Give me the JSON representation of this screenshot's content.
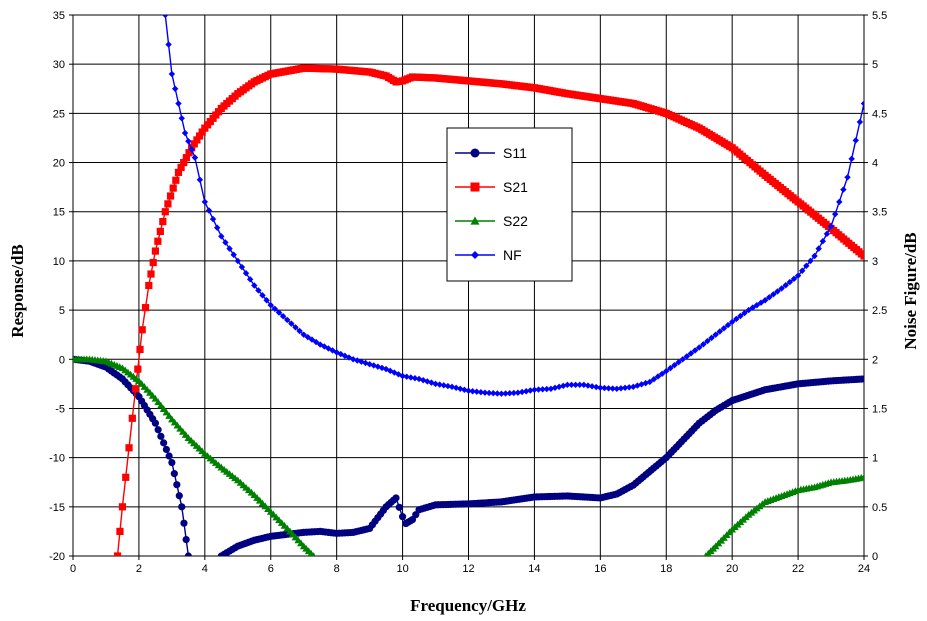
{
  "chart_data": {
    "type": "line",
    "xlabel": "Frequency/GHz",
    "ylabel": "Response/dB",
    "y2label": "Noise Figure/dB",
    "xlim": [
      0,
      24
    ],
    "ylim": [
      -20,
      35
    ],
    "y2lim": [
      0,
      5.5
    ],
    "xticks": [
      0,
      2,
      4,
      6,
      8,
      10,
      12,
      14,
      16,
      18,
      20,
      22,
      24
    ],
    "yticks": [
      -20,
      -15,
      -10,
      -5,
      0,
      5,
      10,
      15,
      20,
      25,
      30,
      35
    ],
    "y2ticks": [
      "0",
      "0.5",
      "1",
      "1.5",
      "2",
      "2.5",
      "3",
      "3.5",
      "4",
      "4.5",
      "5",
      "5.5"
    ],
    "grid": true,
    "legend_position": "center",
    "series": [
      {
        "name": "S11",
        "color": "#000080",
        "marker": "circle",
        "axis": "left",
        "segments": [
          [
            [
              0,
              0
            ],
            [
              0.5,
              -0.2
            ],
            [
              1,
              -0.8
            ],
            [
              1.5,
              -2
            ],
            [
              2,
              -3.8
            ],
            [
              2.5,
              -6.5
            ],
            [
              3,
              -10.5
            ],
            [
              3.3,
              -15
            ],
            [
              3.5,
              -20
            ]
          ],
          [
            [
              4.5,
              -20
            ],
            [
              5,
              -19
            ],
            [
              5.5,
              -18.4
            ],
            [
              6,
              -18
            ],
            [
              7,
              -17.6
            ],
            [
              7.5,
              -17.5
            ],
            [
              8,
              -17.7
            ],
            [
              8.5,
              -17.6
            ],
            [
              9,
              -17.2
            ],
            [
              9.5,
              -15
            ],
            [
              9.8,
              -14.1
            ],
            [
              10,
              -16
            ],
            [
              10.1,
              -16.7
            ],
            [
              10.3,
              -16.3
            ],
            [
              10.5,
              -15.3
            ],
            [
              11,
              -14.8
            ],
            [
              12,
              -14.7
            ],
            [
              13,
              -14.5
            ],
            [
              14,
              -14
            ],
            [
              15,
              -13.9
            ],
            [
              16,
              -14.1
            ],
            [
              16.5,
              -13.7
            ],
            [
              17,
              -12.8
            ],
            [
              18,
              -10
            ],
            [
              19,
              -6.5
            ],
            [
              19.5,
              -5.2
            ],
            [
              20,
              -4.2
            ],
            [
              21,
              -3.1
            ],
            [
              22,
              -2.5
            ],
            [
              23,
              -2.2
            ],
            [
              24,
              -2
            ]
          ]
        ]
      },
      {
        "name": "S21",
        "color": "#ff0000",
        "marker": "square",
        "axis": "left",
        "segments": [
          [
            [
              1.35,
              -20
            ],
            [
              1.5,
              -15
            ],
            [
              1.7,
              -9
            ],
            [
              1.9,
              -3
            ],
            [
              2.1,
              3
            ],
            [
              2.3,
              7.5
            ],
            [
              2.5,
              11
            ],
            [
              2.8,
              15
            ],
            [
              3.2,
              19
            ],
            [
              3.6,
              21.5
            ],
            [
              4,
              23.5
            ],
            [
              4.5,
              25.5
            ],
            [
              5,
              27
            ],
            [
              5.5,
              28.2
            ],
            [
              6,
              29
            ],
            [
              7,
              29.6
            ],
            [
              8,
              29.5
            ],
            [
              9,
              29.2
            ],
            [
              9.5,
              28.8
            ],
            [
              9.8,
              28.2
            ],
            [
              10,
              28.3
            ],
            [
              10.3,
              28.7
            ],
            [
              11,
              28.6
            ],
            [
              12,
              28.3
            ],
            [
              13,
              28
            ],
            [
              14,
              27.6
            ],
            [
              15,
              27
            ],
            [
              16,
              26.5
            ],
            [
              17,
              26
            ],
            [
              18,
              25
            ],
            [
              19,
              23.5
            ],
            [
              20,
              21.5
            ],
            [
              21,
              18.7
            ],
            [
              22,
              16
            ],
            [
              23,
              13.3
            ],
            [
              24,
              10.5
            ]
          ]
        ]
      },
      {
        "name": "S22",
        "color": "#008000",
        "marker": "triangle",
        "axis": "left",
        "segments": [
          [
            [
              0,
              0
            ],
            [
              0.5,
              0
            ],
            [
              1,
              -0.2
            ],
            [
              1.5,
              -0.9
            ],
            [
              2,
              -2.2
            ],
            [
              2.5,
              -4
            ],
            [
              3,
              -6.1
            ],
            [
              3.5,
              -8
            ],
            [
              4,
              -9.6
            ],
            [
              4.5,
              -11
            ],
            [
              5,
              -12.3
            ],
            [
              5.5,
              -13.8
            ],
            [
              6,
              -15.5
            ],
            [
              6.5,
              -17.2
            ],
            [
              7,
              -19
            ],
            [
              7.3,
              -20
            ]
          ],
          [
            [
              19.2,
              -20
            ],
            [
              19.5,
              -19
            ],
            [
              20,
              -17.3
            ],
            [
              20.5,
              -15.8
            ],
            [
              21,
              -14.5
            ],
            [
              21.5,
              -13.9
            ],
            [
              22,
              -13.3
            ],
            [
              22.5,
              -13
            ],
            [
              23,
              -12.5
            ],
            [
              23.5,
              -12.3
            ],
            [
              24,
              -12
            ]
          ]
        ]
      },
      {
        "name": "NF",
        "color": "#0000ff",
        "marker": "diamond",
        "axis": "right",
        "segments": [
          [
            [
              2.8,
              5.5
            ],
            [
              3,
              4.9
            ],
            [
              3.2,
              4.6
            ],
            [
              3.4,
              4.3
            ],
            [
              3.7,
              4.05
            ],
            [
              4,
              3.6
            ],
            [
              4.5,
              3.25
            ],
            [
              5,
              3
            ],
            [
              5.5,
              2.75
            ],
            [
              6,
              2.55
            ],
            [
              6.5,
              2.4
            ],
            [
              7,
              2.25
            ],
            [
              7.5,
              2.15
            ],
            [
              8,
              2.07
            ],
            [
              8.5,
              2
            ],
            [
              9,
              1.95
            ],
            [
              9.5,
              1.9
            ],
            [
              10,
              1.83
            ],
            [
              10.5,
              1.8
            ],
            [
              11,
              1.75
            ],
            [
              11.5,
              1.72
            ],
            [
              12,
              1.68
            ],
            [
              12.5,
              1.66
            ],
            [
              13,
              1.65
            ],
            [
              13.5,
              1.66
            ],
            [
              14,
              1.69
            ],
            [
              14.5,
              1.7
            ],
            [
              15,
              1.74
            ],
            [
              15.5,
              1.74
            ],
            [
              16,
              1.71
            ],
            [
              16.5,
              1.7
            ],
            [
              17,
              1.72
            ],
            [
              17.5,
              1.77
            ],
            [
              18,
              1.88
            ],
            [
              18.5,
              2
            ],
            [
              19,
              2.12
            ],
            [
              19.5,
              2.25
            ],
            [
              20,
              2.38
            ],
            [
              20.5,
              2.5
            ],
            [
              21,
              2.6
            ],
            [
              21.5,
              2.72
            ],
            [
              22,
              2.85
            ],
            [
              22.5,
              3.05
            ],
            [
              23,
              3.35
            ],
            [
              23.5,
              3.85
            ],
            [
              24,
              4.6
            ]
          ]
        ]
      }
    ]
  }
}
